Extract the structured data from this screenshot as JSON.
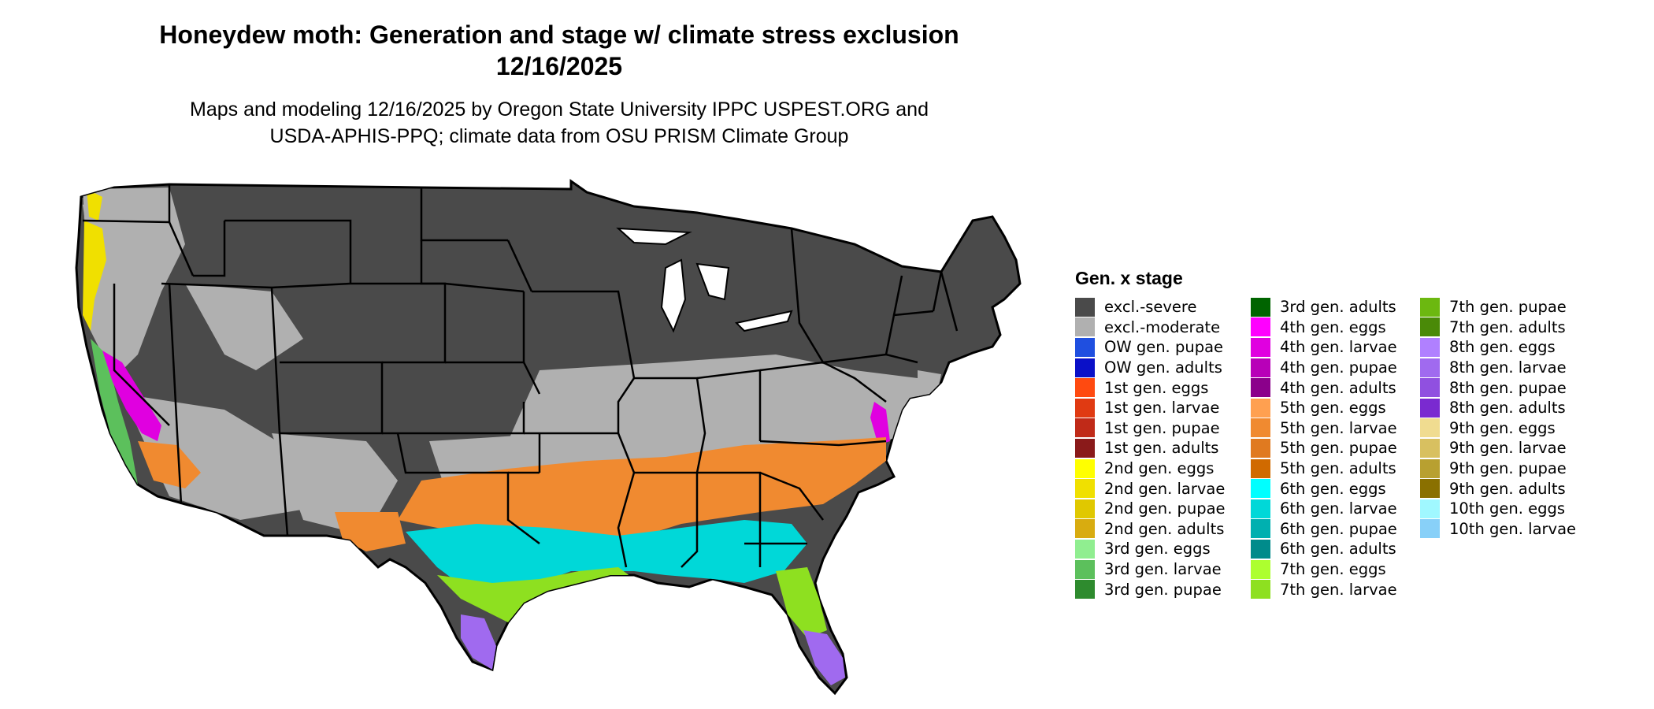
{
  "title_line1": "Honeydew moth: Generation and stage w/ climate stress exclusion",
  "title_line2": "12/16/2025",
  "subtitle_line1": "Maps and modeling 12/16/2025 by Oregon State University IPPC USPEST.ORG and",
  "subtitle_line2": "USDA-APHIS-PPQ; climate data from OSU PRISM Climate Group",
  "legend": {
    "title": "Gen. x stage",
    "columns": [
      [
        {
          "label": "excl.-severe",
          "color": "#4a4a4a"
        },
        {
          "label": "excl.-moderate",
          "color": "#b0b0b0"
        },
        {
          "label": "OW gen. pupae",
          "color": "#1f4fe0"
        },
        {
          "label": "OW gen. adults",
          "color": "#0a10c8"
        },
        {
          "label": "1st gen. eggs",
          "color": "#ff4a10"
        },
        {
          "label": "1st gen. larvae",
          "color": "#e03a12"
        },
        {
          "label": "1st gen. pupae",
          "color": "#c02a18"
        },
        {
          "label": "1st gen. adults",
          "color": "#8a1a1a"
        },
        {
          "label": "2nd gen. eggs",
          "color": "#ffff00"
        },
        {
          "label": "2nd gen. larvae",
          "color": "#f0e000"
        },
        {
          "label": "2nd gen. pupae",
          "color": "#e0c800"
        },
        {
          "label": "2nd gen. adults",
          "color": "#d8ac10"
        },
        {
          "label": "3rd gen. eggs",
          "color": "#90ee90"
        },
        {
          "label": "3rd gen. larvae",
          "color": "#5cc05c"
        },
        {
          "label": "3rd gen. pupae",
          "color": "#2e8b2e"
        }
      ],
      [
        {
          "label": "3rd gen. adults",
          "color": "#006400"
        },
        {
          "label": "4th gen. eggs",
          "color": "#ff00ff"
        },
        {
          "label": "4th gen. larvae",
          "color": "#e000e0"
        },
        {
          "label": "4th gen. pupae",
          "color": "#b800b8"
        },
        {
          "label": "4th gen. adults",
          "color": "#8b008b"
        },
        {
          "label": "5th gen. eggs",
          "color": "#ffa050"
        },
        {
          "label": "5th gen. larvae",
          "color": "#f08a30"
        },
        {
          "label": "5th gen. pupae",
          "color": "#e07a20"
        },
        {
          "label": "5th gen. adults",
          "color": "#d06a00"
        },
        {
          "label": "6th gen. eggs",
          "color": "#00ffff"
        },
        {
          "label": "6th gen. larvae",
          "color": "#00d8d8"
        },
        {
          "label": "6th gen. pupae",
          "color": "#00b0b0"
        },
        {
          "label": "6th gen. adults",
          "color": "#008b8b"
        },
        {
          "label": "7th gen. eggs",
          "color": "#adff2f"
        },
        {
          "label": "7th gen. larvae",
          "color": "#8ee020"
        }
      ],
      [
        {
          "label": "7th gen. pupae",
          "color": "#6cb810"
        },
        {
          "label": "7th gen. adults",
          "color": "#4a8a08"
        },
        {
          "label": "8th gen. eggs",
          "color": "#b080ff"
        },
        {
          "label": "8th gen. larvae",
          "color": "#a06aef"
        },
        {
          "label": "8th gen. pupae",
          "color": "#9050e0"
        },
        {
          "label": "8th gen. adults",
          "color": "#7a2ad0"
        },
        {
          "label": "9th gen. eggs",
          "color": "#f0dc90"
        },
        {
          "label": "9th gen. larvae",
          "color": "#d8c060"
        },
        {
          "label": "9th gen. pupae",
          "color": "#b8a030"
        },
        {
          "label": "9th gen. adults",
          "color": "#8a7000"
        },
        {
          "label": "10th gen. eggs",
          "color": "#a0f8ff"
        },
        {
          "label": "10th gen. larvae",
          "color": "#88d0f8"
        }
      ]
    ]
  },
  "map_colors": {
    "severe": "#4a4a4a",
    "moderate": "#b0b0b0",
    "gen2": "#f0e000",
    "gen4": "#e000e0",
    "gen5": "#f08a30",
    "gen6": "#00d8d8",
    "gen7": "#8ee020",
    "gen8": "#a06aef",
    "gen3": "#5cc05c",
    "border": "#000000"
  }
}
